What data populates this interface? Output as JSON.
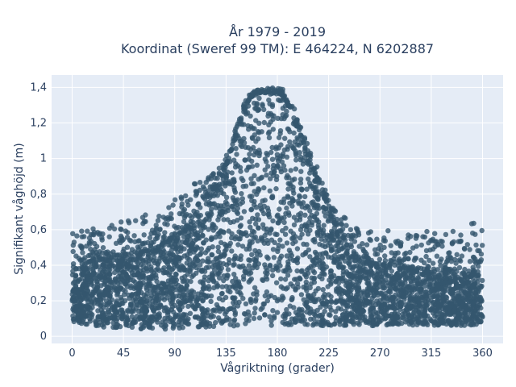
{
  "chart_data": {
    "type": "scatter",
    "title": "År 1979 - 2019",
    "subtitle": "Koordinat (Sweref 99 TM): E 464224, N 6202887",
    "xlabel": "Vågriktning (grader)",
    "ylabel": "Signifikant våghöjd (m)",
    "xlim": [
      -18,
      378
    ],
    "ylim": [
      -0.04,
      1.47
    ],
    "x_ticks": [
      0,
      45,
      90,
      135,
      180,
      225,
      270,
      315,
      360
    ],
    "x_tick_labels": [
      "0",
      "45",
      "90",
      "135",
      "180",
      "225",
      "270",
      "315",
      "360"
    ],
    "y_ticks": [
      0,
      0.2,
      0.4,
      0.6,
      0.8,
      1,
      1.2,
      1.4
    ],
    "y_tick_labels": [
      "0",
      "0,2",
      "0,4",
      "0,6",
      "0,8",
      "1",
      "1,2",
      "1,4"
    ],
    "grid": true,
    "marker_color": "#34566e",
    "background_color": "#e5ecf6",
    "envelope": {
      "x": [
        0,
        10,
        20,
        30,
        45,
        60,
        75,
        90,
        100,
        110,
        120,
        130,
        135,
        140,
        145,
        150,
        155,
        160,
        165,
        170,
        175,
        180,
        185,
        190,
        195,
        200,
        205,
        210,
        215,
        220,
        225,
        230,
        235,
        240,
        250,
        260,
        270,
        280,
        290,
        300,
        315,
        330,
        345,
        360
      ],
      "y_min": [
        0.08,
        0.07,
        0.06,
        0.05,
        0.05,
        0.04,
        0.04,
        0.04,
        0.05,
        0.05,
        0.05,
        0.05,
        0.05,
        0.05,
        0.06,
        0.06,
        0.06,
        0.06,
        0.06,
        0.06,
        0.06,
        0.06,
        0.06,
        0.06,
        0.06,
        0.06,
        0.06,
        0.06,
        0.06,
        0.06,
        0.06,
        0.06,
        0.06,
        0.06,
        0.06,
        0.06,
        0.06,
        0.06,
        0.06,
        0.06,
        0.06,
        0.06,
        0.06,
        0.07
      ],
      "y_max_dense": [
        0.34,
        0.4,
        0.44,
        0.45,
        0.46,
        0.47,
        0.5,
        0.55,
        0.62,
        0.7,
        0.78,
        0.88,
        0.95,
        1.05,
        1.15,
        1.25,
        1.33,
        1.36,
        1.37,
        1.37,
        1.36,
        1.38,
        1.35,
        1.3,
        1.22,
        1.14,
        1.05,
        0.95,
        0.88,
        0.8,
        0.72,
        0.64,
        0.58,
        0.52,
        0.45,
        0.42,
        0.4,
        0.4,
        0.4,
        0.38,
        0.38,
        0.37,
        0.36,
        0.33
      ],
      "y_max_outlier": [
        0.59,
        0.6,
        0.62,
        0.64,
        0.68,
        0.68,
        0.69,
        0.77,
        0.8,
        0.88,
        0.9,
        0.96,
        1.02,
        1.1,
        1.2,
        1.3,
        1.37,
        1.38,
        1.39,
        1.4,
        1.41,
        1.4,
        1.39,
        1.33,
        1.28,
        1.2,
        1.12,
        1.02,
        0.95,
        0.88,
        0.8,
        0.72,
        0.68,
        0.67,
        0.62,
        0.6,
        0.6,
        0.62,
        0.6,
        0.57,
        0.6,
        0.58,
        0.67,
        0.6
      ]
    }
  }
}
